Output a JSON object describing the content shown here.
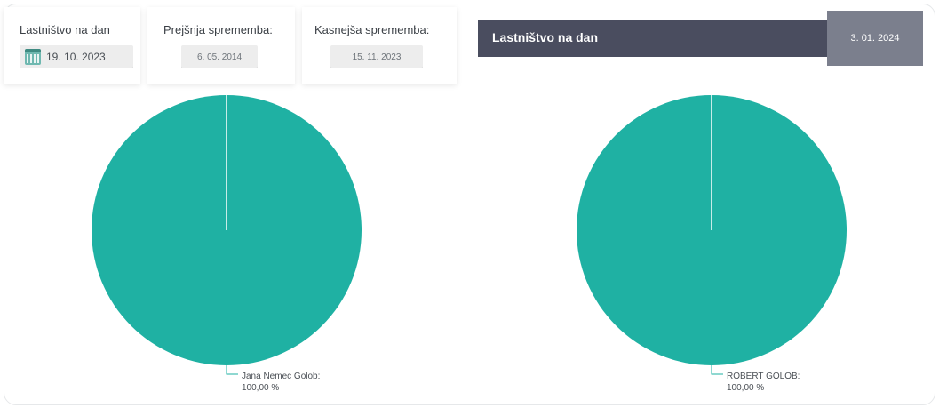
{
  "controls": {
    "ownership_label": "Lastništvo na dan",
    "ownership_date": "19. 10. 2023",
    "previous_label": "Prejšnja sprememba:",
    "previous_date": "6. 05. 2014",
    "later_label": "Kasnejša sprememba:",
    "later_date": "15. 11. 2023"
  },
  "right_header": {
    "title": "Lastništvo na dan",
    "date": "3. 01. 2024"
  },
  "colors": {
    "slice": "#1fb1a3",
    "header_bar": "#4a4d5f",
    "header_date": "#7b7f8d"
  },
  "chart_data": [
    {
      "type": "pie",
      "slices": [
        {
          "label": "Jana Nemec Golob",
          "value": 100.0,
          "display": "100,00 %"
        }
      ]
    },
    {
      "type": "pie",
      "slices": [
        {
          "label": "ROBERT GOLOB",
          "value": 100.0,
          "display": "100,00 %"
        }
      ]
    }
  ]
}
